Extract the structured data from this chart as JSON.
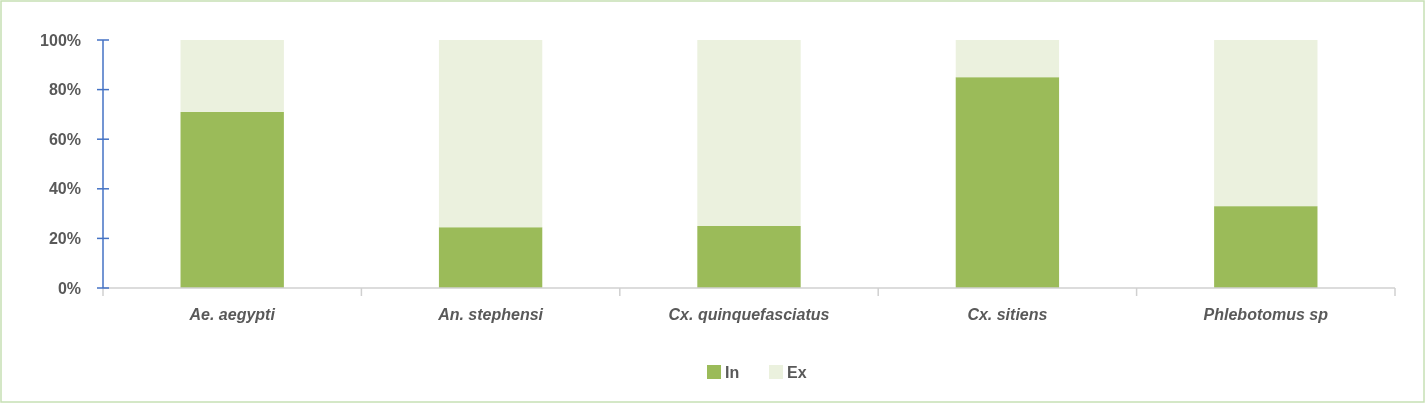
{
  "chart_data": {
    "type": "bar",
    "stacked": true,
    "categories": [
      "Ae. aegypti",
      "An. stephensi",
      "Cx. quinquefasciatus",
      "Cx. sitiens",
      "Phlebotomus sp"
    ],
    "series": [
      {
        "name": "In",
        "color": "#9bbb59",
        "values": [
          71,
          24.5,
          25,
          85,
          33
        ]
      },
      {
        "name": "Ex",
        "color": "#ebf1de",
        "values": [
          29,
          75.5,
          75,
          15,
          67
        ]
      }
    ],
    "ylim": [
      0,
      100
    ],
    "yticks": [
      {
        "value": 0,
        "label": "0%"
      },
      {
        "value": 20,
        "label": "20%"
      },
      {
        "value": 40,
        "label": "40%"
      },
      {
        "value": 60,
        "label": "60%"
      },
      {
        "value": 80,
        "label": "80%"
      },
      {
        "value": 100,
        "label": "100%"
      }
    ],
    "grid": false,
    "legend": "bottom"
  }
}
